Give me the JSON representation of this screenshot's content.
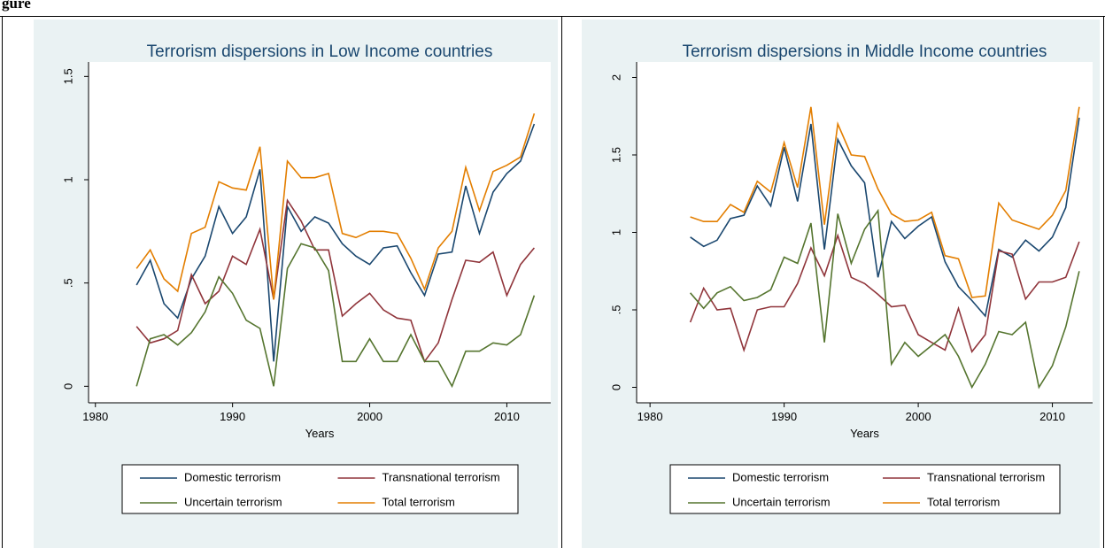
{
  "header": "gure",
  "chart_data": [
    {
      "type": "line",
      "title": "Terrorism dispersions in Low Income countries",
      "x_label": "Years",
      "x": [
        1983,
        1984,
        1985,
        1986,
        1987,
        1988,
        1989,
        1990,
        1991,
        1992,
        1993,
        1994,
        1995,
        1996,
        1997,
        1998,
        1999,
        2000,
        2001,
        2002,
        2003,
        2004,
        2005,
        2006,
        2007,
        2008,
        2009,
        2010,
        2011,
        2012
      ],
      "series": [
        {
          "name": "Domestic terrorism",
          "color": "#1a476f",
          "values": [
            0.49,
            0.61,
            0.4,
            0.33,
            0.52,
            0.63,
            0.87,
            0.74,
            0.82,
            1.05,
            0.12,
            0.87,
            0.75,
            0.82,
            0.79,
            0.69,
            0.63,
            0.59,
            0.67,
            0.68,
            0.55,
            0.44,
            0.64,
            0.65,
            0.97,
            0.74,
            0.94,
            1.03,
            1.09,
            1.27
          ]
        },
        {
          "name": "Transnational terrorism",
          "color": "#90353b",
          "values": [
            0.29,
            0.21,
            0.23,
            0.27,
            0.54,
            0.4,
            0.46,
            0.63,
            0.59,
            0.76,
            0.42,
            0.9,
            0.8,
            0.66,
            0.66,
            0.34,
            0.4,
            0.45,
            0.37,
            0.33,
            0.32,
            0.12,
            0.21,
            0.42,
            0.61,
            0.6,
            0.65,
            0.44,
            0.59,
            0.67
          ]
        },
        {
          "name": "Uncertain terrorism",
          "color": "#55752f",
          "values": [
            0.0,
            0.23,
            0.25,
            0.2,
            0.26,
            0.36,
            0.53,
            0.45,
            0.32,
            0.28,
            0.0,
            0.57,
            0.69,
            0.67,
            0.56,
            0.12,
            0.12,
            0.23,
            0.12,
            0.12,
            0.25,
            0.12,
            0.12,
            0.0,
            0.17,
            0.17,
            0.21,
            0.2,
            0.25,
            0.44
          ]
        },
        {
          "name": "Total terrorism",
          "color": "#e37e00",
          "values": [
            0.57,
            0.66,
            0.52,
            0.46,
            0.74,
            0.77,
            0.99,
            0.96,
            0.95,
            1.16,
            0.42,
            1.09,
            1.01,
            1.01,
            1.03,
            0.74,
            0.72,
            0.75,
            0.75,
            0.74,
            0.62,
            0.47,
            0.67,
            0.75,
            1.06,
            0.85,
            1.04,
            1.07,
            1.11,
            1.32
          ]
        }
      ],
      "xlim": [
        1979.5,
        2013.2
      ],
      "xticks": [
        1980,
        1990,
        2000,
        2010
      ],
      "ylim": [
        -0.08,
        1.57
      ],
      "yticks": [
        0,
        {
          "value": 0.5,
          "label": ".5"
        },
        1,
        1.5
      ],
      "legend": "bottom"
    },
    {
      "type": "line",
      "title": "Terrorism dispersions in Middle Income countries",
      "x_label": "Years",
      "x": [
        1983,
        1984,
        1985,
        1986,
        1987,
        1988,
        1989,
        1990,
        1991,
        1992,
        1993,
        1994,
        1995,
        1996,
        1997,
        1998,
        1999,
        2000,
        2001,
        2002,
        2003,
        2004,
        2005,
        2006,
        2007,
        2008,
        2009,
        2010,
        2011,
        2012
      ],
      "series": [
        {
          "name": "Domestic terrorism",
          "color": "#1a476f",
          "values": [
            0.97,
            0.91,
            0.95,
            1.09,
            1.11,
            1.3,
            1.17,
            1.55,
            1.2,
            1.7,
            0.89,
            1.6,
            1.43,
            1.32,
            0.71,
            1.07,
            0.96,
            1.04,
            1.1,
            0.81,
            0.65,
            0.56,
            0.46,
            0.89,
            0.84,
            0.95,
            0.88,
            0.97,
            1.16,
            1.74
          ]
        },
        {
          "name": "Transnational terrorism",
          "color": "#90353b",
          "values": [
            0.42,
            0.64,
            0.5,
            0.51,
            0.24,
            0.5,
            0.52,
            0.52,
            0.67,
            0.9,
            0.72,
            0.98,
            0.71,
            0.67,
            0.6,
            0.52,
            0.53,
            0.34,
            0.29,
            0.24,
            0.51,
            0.23,
            0.34,
            0.88,
            0.86,
            0.57,
            0.68,
            0.68,
            0.71,
            0.94
          ]
        },
        {
          "name": "Uncertain terrorism",
          "color": "#55752f",
          "values": [
            0.61,
            0.51,
            0.61,
            0.65,
            0.56,
            0.58,
            0.63,
            0.84,
            0.8,
            1.06,
            0.29,
            1.12,
            0.8,
            1.02,
            1.14,
            0.15,
            0.29,
            0.2,
            0.27,
            0.34,
            0.2,
            0.0,
            0.15,
            0.36,
            0.34,
            0.42,
            0.0,
            0.14,
            0.39,
            0.75
          ]
        },
        {
          "name": "Total terrorism",
          "color": "#e37e00",
          "values": [
            1.1,
            1.07,
            1.07,
            1.18,
            1.13,
            1.33,
            1.26,
            1.58,
            1.29,
            1.81,
            1.05,
            1.7,
            1.5,
            1.49,
            1.28,
            1.12,
            1.07,
            1.08,
            1.13,
            0.85,
            0.83,
            0.58,
            0.59,
            1.19,
            1.08,
            1.05,
            1.02,
            1.11,
            1.27,
            1.81
          ]
        }
      ],
      "xlim": [
        1979,
        2013
      ],
      "xticks": [
        1980,
        1990,
        2000,
        2010
      ],
      "ylim": [
        -0.1,
        2.1
      ],
      "yticks": [
        0,
        {
          "value": 0.5,
          "label": ".5"
        },
        1,
        1.5,
        2
      ],
      "legend": "bottom"
    }
  ]
}
